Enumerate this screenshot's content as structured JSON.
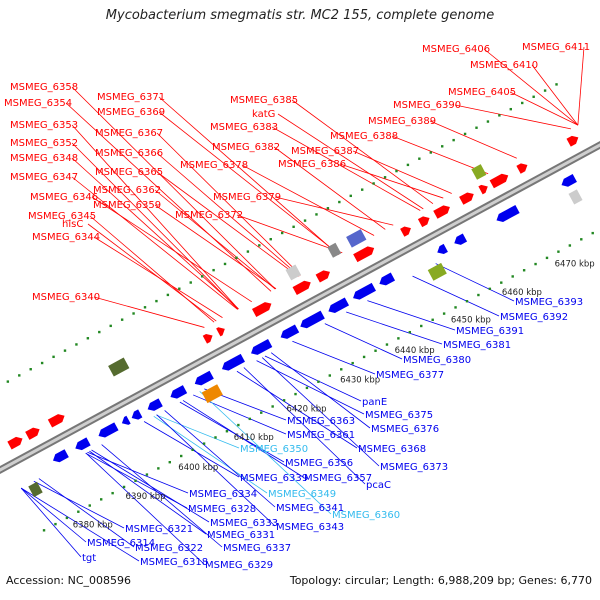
{
  "title": "Mycobacterium smegmatis str. MC2 155, complete genome",
  "footer": {
    "accession": "Accession: NC_008596",
    "topology": "Topology: circular; Length: 6,988,209 bp; Genes: 6,770"
  },
  "colors": {
    "forward": "#ff0000",
    "reverse": "#0000ee",
    "rna": "#33bbee",
    "backbone": "#999999",
    "tick": "#228822"
  },
  "ticks": [
    "6380 kbp",
    "6390 kbp",
    "6400 kbp",
    "6410 kbp",
    "6420 kbp",
    "6430 kbp",
    "6440 kbp",
    "6450 kbp",
    "6460 kbp",
    "6470 kbp"
  ],
  "labels_top": [
    "MSMEG_6411",
    "MSMEG_6406",
    "MSMEG_6410",
    "MSMEG_6405",
    "MSMEG_6390",
    "MSMEG_6389",
    "MSMEG_6388",
    "MSMEG_6385",
    "katG",
    "MSMEG_6383",
    "MSMEG_6382",
    "MSMEG_6387",
    "MSMEG_6386",
    "MSMEG_6371",
    "MSMEG_6369",
    "MSMEG_6367",
    "MSMEG_6366",
    "MSMEG_6365",
    "MSMEG_6378",
    "MSMEG_6379",
    "MSMEG_6362",
    "MSMEG_6359",
    "MSMEG_6372",
    "MSMEG_6358",
    "MSMEG_6354",
    "MSMEG_6353",
    "MSMEG_6352",
    "MSMEG_6348",
    "MSMEG_6347",
    "MSMEG_6346",
    "MSMEG_6345",
    "hisC",
    "MSMEG_6344",
    "MSMEG_6340"
  ],
  "labels_bottom": [
    "MSMEG_6393",
    "MSMEG_6392",
    "MSMEG_6391",
    "MSMEG_6381",
    "MSMEG_6380",
    "MSMEG_6377",
    "panE",
    "MSMEG_6375",
    "MSMEG_6376",
    "MSMEG_6363",
    "MSMEG_6361",
    "MSMEG_6368",
    "MSMEG_6373",
    "MSMEG_6350",
    "MSMEG_6356",
    "MSMEG_6357",
    "pcaC",
    "MSMEG_6339",
    "MSMEG_6349",
    "MSMEG_6334",
    "MSMEG_6341",
    "MSMEG_6360",
    "MSMEG_6328",
    "MSMEG_6333",
    "MSMEG_6343",
    "MSMEG_6321",
    "MSMEG_6331",
    "MSMEG_6314",
    "MSMEG_6322",
    "MSMEG_6337",
    "tgt",
    "MSMEG_6318",
    "MSMEG_6329"
  ]
}
